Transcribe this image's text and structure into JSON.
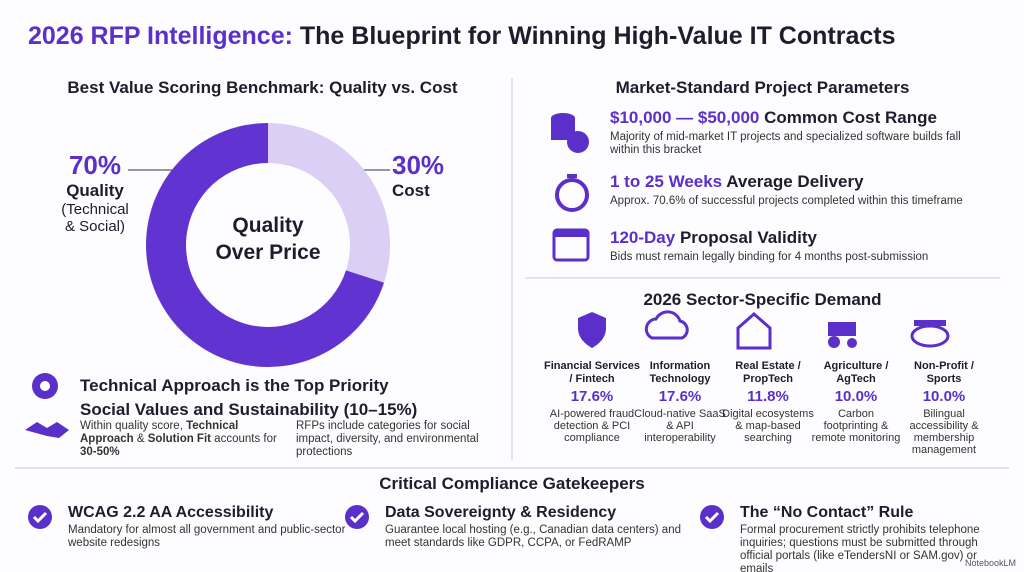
{
  "header": {
    "accent": "2026 RFP Intelligence:",
    "rest": "The Blueprint for Winning High-Value IT Contracts"
  },
  "scoring": {
    "heading": "Best Value Scoring Benchmark: Quality vs. Cost",
    "center": [
      "Quality",
      "Over Price"
    ],
    "segments": [
      {
        "pct": {
          "value": 70,
          "label": "70%"
        },
        "name": "Quality",
        "note": [
          "(Technical",
          "& Social)"
        ],
        "color": "#6133d1"
      },
      {
        "pct": {
          "value": 30,
          "label": "30%"
        },
        "name": "Cost",
        "color": "#dbcff5"
      }
    ]
  },
  "priority": {
    "headline1": "Technical Approach is the Top Priority",
    "headline2": "Social Values and Sustainability (10–15%)",
    "note1": [
      "Within quality score, ",
      "Technical Approach",
      "& ",
      "Solution Fit",
      " accounts for ",
      "30-50%"
    ],
    "note2": "RFPs include categories for social impact, diversity, and environmental protections"
  },
  "parameters": {
    "heading": "Market-Standard Project Parameters",
    "items": [
      {
        "highlight": "$10,000 — $50,000",
        "rest": " Common Cost Range",
        "desc": "Majority of mid-market IT projects and specialized software builds fall within this bracket"
      },
      {
        "highlight": "1 to 25 Weeks",
        "rest": " Average Delivery",
        "desc": "Approx. 70.6% of successful projects completed within this timeframe"
      },
      {
        "highlight": "120-Day",
        "rest": " Proposal Validity",
        "desc": "Bids must remain legally binding for 4 months post-submission"
      }
    ]
  },
  "sectors": {
    "heading": "2026 Sector-Specific Demand",
    "items": [
      {
        "name": "Financial Services / Fintech",
        "pct": "17.6%",
        "desc": "AI-powered fraud detection & PCI compliance"
      },
      {
        "name": "Information Technology",
        "pct": "17.6%",
        "desc": "Cloud-native SaaS & API interoperability"
      },
      {
        "name": "Real Estate / PropTech",
        "pct": "11.8%",
        "desc": "Digital ecosystems & map-based searching"
      },
      {
        "name": "Agriculture / AgTech",
        "pct": "10.0%",
        "desc": "Carbon footprinting & remote monitoring"
      },
      {
        "name": "Non-Profit / Sports",
        "pct": "10.0%",
        "desc": "Bilingual accessibility & membership management"
      }
    ]
  },
  "compliance": {
    "heading": "Critical Compliance Gatekeepers",
    "items": [
      {
        "title": "WCAG 2.2 AA Accessibility",
        "desc": "Mandatory for almost all government and public-sector website redesigns"
      },
      {
        "title": "Data Sovereignty & Residency",
        "desc": "Guarantee local hosting (e.g., Canadian data centers) and meet standards like GDPR, CCPA, or FedRAMP"
      },
      {
        "title": "The “No Contact” Rule",
        "desc": "Formal procurement strictly prohibits telephone inquiries; questions must be submitted through official portals (like eTendersNI or SAM.gov) or emails"
      }
    ]
  },
  "watermark": "NotebookLM"
}
